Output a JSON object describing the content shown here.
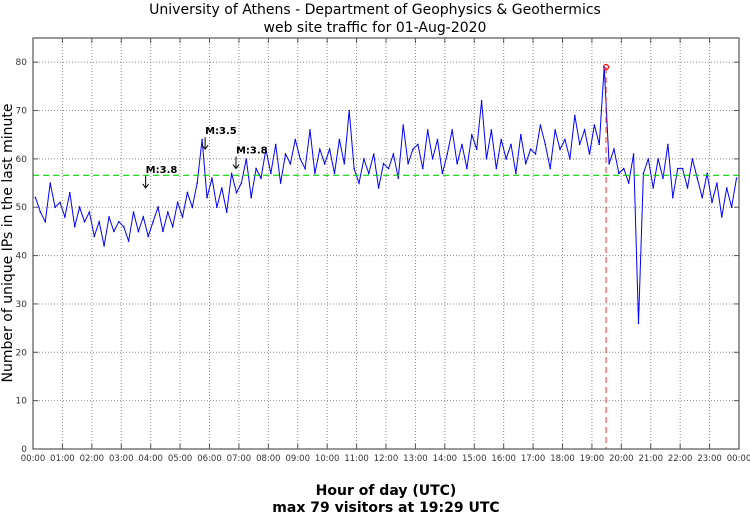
{
  "chart_data": {
    "type": "line",
    "title": "University of Athens - Department of Geophysics & Geothermics",
    "subtitle": "web site traffic for 01-Aug-2020",
    "xlabel": "Hour of day (UTC)",
    "xlabel2": "max 79 visitors at 19:29 UTC",
    "ylabel": "Number of unique IPs in the last minute",
    "xlim": [
      0,
      24
    ],
    "ylim": [
      0,
      85
    ],
    "grid": true,
    "x_ticks": [
      "00:00",
      "01:00",
      "02:00",
      "03:00",
      "04:00",
      "05:00",
      "06:00",
      "07:00",
      "08:00",
      "09:00",
      "10:00",
      "11:00",
      "12:00",
      "13:00",
      "14:00",
      "15:00",
      "16:00",
      "17:00",
      "18:00",
      "19:00",
      "20:00",
      "21:00",
      "22:00",
      "23:00",
      "00:00"
    ],
    "y_ticks": [
      0,
      10,
      20,
      30,
      40,
      50,
      60,
      70,
      80
    ],
    "sample_interval_minutes": 10,
    "series": [
      {
        "name": "visitors",
        "color": "#0000ff",
        "values": [
          52,
          49,
          47,
          55,
          50,
          51,
          48,
          53,
          46,
          50,
          47,
          49,
          44,
          47,
          42,
          48,
          45,
          47,
          46,
          43,
          49,
          45,
          48,
          44,
          47,
          50,
          45,
          49,
          46,
          51,
          48,
          53,
          50,
          55,
          64,
          52,
          56,
          50,
          54,
          49,
          57,
          53,
          55,
          60,
          52,
          58,
          56,
          62,
          57,
          63,
          55,
          61,
          59,
          64,
          60,
          58,
          66,
          57,
          62,
          59,
          62,
          57,
          64,
          59,
          70,
          58,
          55,
          60,
          57,
          61,
          54,
          59,
          58,
          61,
          56,
          67,
          59,
          62,
          63,
          58,
          66,
          60,
          64,
          57,
          61,
          66,
          59,
          63,
          58,
          65,
          62,
          72,
          60,
          66,
          58,
          64,
          60,
          63,
          57,
          65,
          59,
          62,
          61,
          67,
          63,
          58,
          66,
          62,
          64,
          60,
          69,
          63,
          66,
          61,
          67,
          63,
          79,
          59,
          62,
          57,
          58,
          55,
          61,
          26,
          57,
          60,
          54,
          60,
          56,
          63,
          52,
          58,
          58,
          54,
          60,
          56,
          52,
          57,
          51,
          55,
          48,
          54,
          50,
          56
        ]
      }
    ],
    "mean": {
      "value": 56.6,
      "color": "#00dd00"
    },
    "max_marker": {
      "hour": 19.48,
      "value": 79,
      "color": "#ff0000"
    },
    "annotations": [
      {
        "text": "M:3.8",
        "hour": 3.83,
        "value": 54
      },
      {
        "text": "M:3.5",
        "hour": 5.85,
        "value": 62
      },
      {
        "text": "M:3.8",
        "hour": 6.9,
        "value": 58
      }
    ]
  }
}
